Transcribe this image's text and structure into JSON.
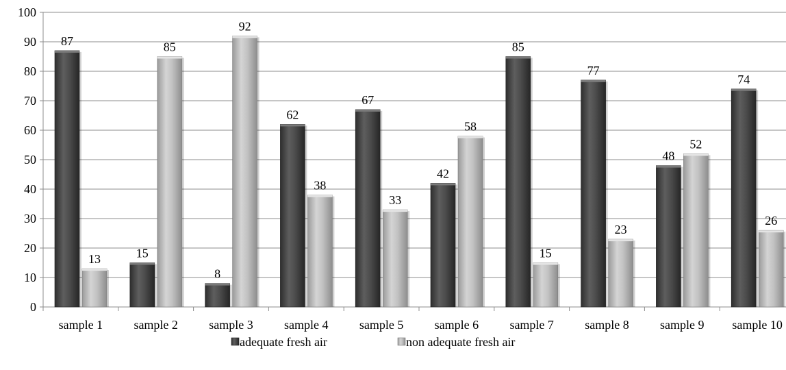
{
  "chart_data": {
    "type": "bar",
    "title": "",
    "xlabel": "",
    "ylabel": "",
    "ylim": [
      0,
      100
    ],
    "yticks": [
      0,
      10,
      20,
      30,
      40,
      50,
      60,
      70,
      80,
      90,
      100
    ],
    "grid": true,
    "legend_position": "bottom",
    "categories": [
      "sample 1",
      "sample 2",
      "sample 3",
      "sample 4",
      "sample 5",
      "sample 6",
      "sample 7",
      "sample 8",
      "sample 9",
      "sample 10"
    ],
    "series": [
      {
        "name": "adequate fresh air",
        "color": "#4a4a4a",
        "values": [
          87,
          15,
          8,
          62,
          67,
          42,
          85,
          77,
          48,
          74
        ]
      },
      {
        "name": "non adequate fresh air",
        "color": "#b4b4b4",
        "values": [
          13,
          85,
          92,
          38,
          33,
          58,
          15,
          23,
          52,
          26
        ]
      }
    ]
  }
}
